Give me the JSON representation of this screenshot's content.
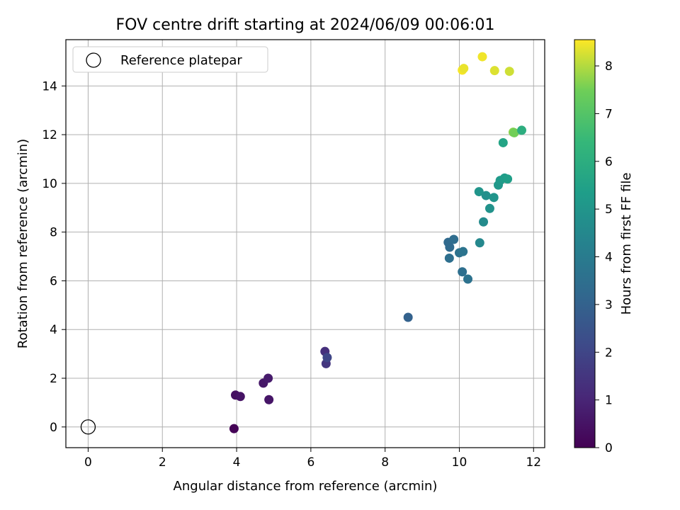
{
  "chart_data": {
    "type": "scatter",
    "title": "FOV centre drift starting at 2024/06/09 00:06:01",
    "xlabel": "Angular distance from reference (arcmin)",
    "ylabel": "Rotation from reference (arcmin)",
    "xlim": [
      -0.6,
      12.3
    ],
    "ylim": [
      -0.85,
      15.9
    ],
    "x_ticks": [
      0,
      2,
      4,
      6,
      8,
      10,
      12
    ],
    "y_ticks": [
      0,
      2,
      4,
      6,
      8,
      10,
      12,
      14
    ],
    "grid": true,
    "legend": {
      "position": "top-left",
      "entries": [
        "Reference platepar"
      ]
    },
    "reference": {
      "x": 0,
      "y": 0
    },
    "colorbar": {
      "label": "Hours from first FF file",
      "colormap": "viridis",
      "range": [
        0,
        8.55
      ],
      "ticks": [
        0,
        1,
        2,
        3,
        4,
        5,
        6,
        7,
        8
      ]
    },
    "points": [
      {
        "x": 3.93,
        "y": -0.07,
        "c": 0.05
      },
      {
        "x": 3.97,
        "y": 1.31,
        "c": 0.4
      },
      {
        "x": 4.1,
        "y": 1.25,
        "c": 0.5
      },
      {
        "x": 4.72,
        "y": 1.8,
        "c": 0.6
      },
      {
        "x": 4.85,
        "y": 2.0,
        "c": 0.7
      },
      {
        "x": 4.87,
        "y": 1.12,
        "c": 0.55
      },
      {
        "x": 6.38,
        "y": 3.1,
        "c": 1.3
      },
      {
        "x": 6.41,
        "y": 2.6,
        "c": 1.5
      },
      {
        "x": 6.44,
        "y": 2.85,
        "c": 2.0
      },
      {
        "x": 8.62,
        "y": 4.5,
        "c": 3.0
      },
      {
        "x": 9.7,
        "y": 7.58,
        "c": 3.3
      },
      {
        "x": 9.74,
        "y": 7.38,
        "c": 3.3
      },
      {
        "x": 9.73,
        "y": 6.93,
        "c": 3.5
      },
      {
        "x": 9.85,
        "y": 7.7,
        "c": 3.4
      },
      {
        "x": 10.0,
        "y": 7.15,
        "c": 3.6
      },
      {
        "x": 10.1,
        "y": 7.2,
        "c": 3.7
      },
      {
        "x": 10.08,
        "y": 6.37,
        "c": 3.5
      },
      {
        "x": 10.23,
        "y": 6.07,
        "c": 3.6
      },
      {
        "x": 10.55,
        "y": 7.56,
        "c": 4.5
      },
      {
        "x": 10.53,
        "y": 9.66,
        "c": 5.0
      },
      {
        "x": 10.65,
        "y": 8.42,
        "c": 4.6
      },
      {
        "x": 10.72,
        "y": 9.5,
        "c": 4.8
      },
      {
        "x": 10.82,
        "y": 8.97,
        "c": 4.9
      },
      {
        "x": 10.93,
        "y": 9.42,
        "c": 5.0
      },
      {
        "x": 11.05,
        "y": 9.93,
        "c": 5.1
      },
      {
        "x": 11.1,
        "y": 10.12,
        "c": 5.2
      },
      {
        "x": 11.18,
        "y": 11.67,
        "c": 5.6
      },
      {
        "x": 11.22,
        "y": 10.22,
        "c": 5.3
      },
      {
        "x": 11.3,
        "y": 10.18,
        "c": 5.4
      },
      {
        "x": 11.45,
        "y": 12.1,
        "c": 7.7
      },
      {
        "x": 11.48,
        "y": 12.08,
        "c": 7.5
      },
      {
        "x": 11.68,
        "y": 12.18,
        "c": 6.0
      },
      {
        "x": 10.08,
        "y": 14.65,
        "c": 8.5
      },
      {
        "x": 10.12,
        "y": 14.72,
        "c": 8.4
      },
      {
        "x": 10.62,
        "y": 15.2,
        "c": 8.45
      },
      {
        "x": 10.95,
        "y": 14.63,
        "c": 8.3
      },
      {
        "x": 11.35,
        "y": 14.6,
        "c": 8.2
      }
    ]
  }
}
